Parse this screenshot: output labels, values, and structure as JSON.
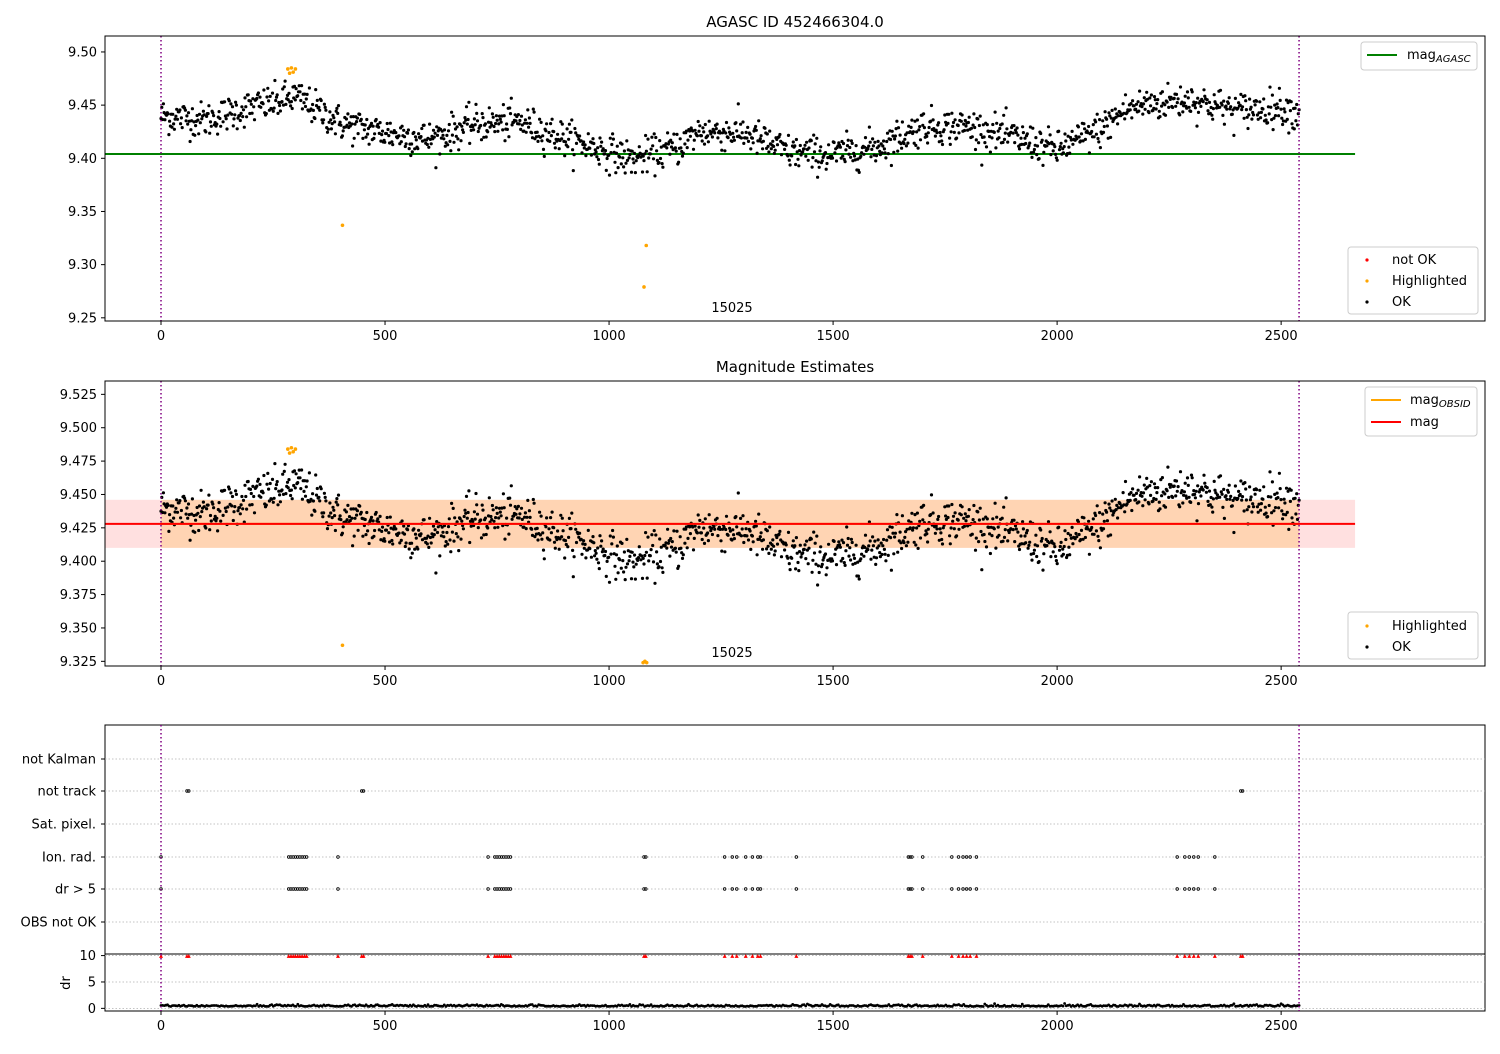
{
  "chart_data": [
    {
      "type": "scatter",
      "title": "AGASC ID 452466304.0",
      "xlim": [
        -125,
        2955
      ],
      "ylim": [
        9.247,
        9.515
      ],
      "xticks": [
        0,
        500,
        1000,
        1500,
        2000,
        2500
      ],
      "yticks": [
        9.25,
        9.3,
        9.35,
        9.4,
        9.45,
        9.5
      ],
      "yticklabels": [
        "9.25",
        "9.30",
        "9.35",
        "9.40",
        "9.45",
        "9.50"
      ],
      "obsid_label": "15025",
      "obsid_boundaries": [
        0,
        2540
      ],
      "mag_agasc": {
        "label": "mag",
        "subscript": "AGASC",
        "value": 9.404,
        "x_range": [
          -125,
          2665
        ],
        "color": "#008000"
      },
      "legend_points": [
        {
          "label": "not OK",
          "color": "#ff0000"
        },
        {
          "label": "Highlighted",
          "color": "#ffa500"
        },
        {
          "label": "OK",
          "color": "#000000"
        }
      ],
      "trend": {
        "x": [
          0,
          100,
          200,
          260,
          300,
          400,
          500,
          600,
          700,
          800,
          900,
          1000,
          1050,
          1080,
          1150,
          1200,
          1300,
          1400,
          1500,
          1600,
          1700,
          1800,
          1900,
          2000,
          2100,
          2150,
          2200,
          2300,
          2400,
          2500,
          2540
        ],
        "y": [
          9.44,
          9.436,
          9.448,
          9.453,
          9.458,
          9.433,
          9.424,
          9.418,
          9.432,
          9.434,
          9.419,
          9.406,
          9.399,
          9.402,
          9.41,
          9.425,
          9.424,
          9.406,
          9.403,
          9.411,
          9.43,
          9.43,
          9.42,
          9.408,
          9.428,
          9.445,
          9.451,
          9.455,
          9.445,
          9.448,
          9.442
        ],
        "noise": 0.011,
        "point_count": 1450
      },
      "highlighted": {
        "x": [
          283,
          287,
          291,
          295,
          300,
          405,
          1078,
          1083
        ],
        "y": [
          9.484,
          9.48,
          9.485,
          9.481,
          9.484,
          9.337,
          9.279,
          9.318
        ]
      }
    },
    {
      "type": "scatter",
      "title": "Magnitude Estimates",
      "xlim": [
        -125,
        2955
      ],
      "ylim": [
        9.3215,
        9.535
      ],
      "xticks": [
        0,
        500,
        1000,
        1500,
        2000,
        2500
      ],
      "yticks": [
        9.325,
        9.35,
        9.375,
        9.4,
        9.425,
        9.45,
        9.475,
        9.5,
        9.525
      ],
      "yticklabels": [
        "9.325",
        "9.350",
        "9.375",
        "9.400",
        "9.425",
        "9.450",
        "9.475",
        "9.500",
        "9.525"
      ],
      "obsid_label": "15025",
      "obsid_boundaries": [
        0,
        2540
      ],
      "mag": {
        "label": "mag",
        "value": 9.428,
        "x_range": [
          -125,
          2665
        ],
        "band": [
          9.41,
          9.446
        ],
        "color": "#ff0000"
      },
      "mag_obsid": {
        "label": "mag",
        "subscript": "OBSID",
        "value": 9.428,
        "band": [
          9.41,
          9.446
        ],
        "x_range": [
          0,
          2540
        ],
        "color": "#ffa500"
      },
      "legend_lines": [
        {
          "label": "mag",
          "subscript": "OBSID",
          "color": "#ffa500"
        },
        {
          "label": "mag",
          "subscript": "",
          "color": "#ff0000"
        }
      ],
      "legend_points": [
        {
          "label": "Highlighted",
          "color": "#ffa500"
        },
        {
          "label": "OK",
          "color": "#000000"
        }
      ],
      "highlighted": {
        "x": [
          283,
          287,
          291,
          295,
          300,
          405,
          1076,
          1080,
          1084
        ],
        "y": [
          9.484,
          9.481,
          9.485,
          9.482,
          9.484,
          9.337,
          9.324,
          9.325,
          9.324
        ]
      }
    },
    {
      "type": "scatter",
      "title": "",
      "xlim": [
        -125,
        2955
      ],
      "flag_rows": [
        "not Kalman",
        "not track",
        "Sat. pixel.",
        "Ion. rad.",
        "dr > 5",
        "OBS not OK"
      ],
      "obsid_boundaries": [
        0,
        2540
      ],
      "flags": {
        "not track": [
          58,
          62,
          448,
          452,
          2410,
          2414
        ],
        "Ion. rad.": [
          0,
          285,
          290,
          295,
          300,
          305,
          310,
          315,
          320,
          325,
          395,
          730,
          745,
          750,
          755,
          760,
          765,
          770,
          775,
          780,
          1078,
          1082,
          1258,
          1275,
          1285,
          1305,
          1320,
          1332,
          1338,
          1418,
          1668,
          1672,
          1676,
          1700,
          1765,
          1780,
          1790,
          1798,
          1806,
          1820,
          2268,
          2285,
          2295,
          2305,
          2315,
          2352
        ],
        "dr > 5": [
          0,
          285,
          290,
          295,
          300,
          305,
          310,
          315,
          320,
          325,
          395,
          730,
          745,
          750,
          755,
          760,
          765,
          770,
          775,
          780,
          1078,
          1082,
          1258,
          1275,
          1285,
          1305,
          1320,
          1332,
          1338,
          1418,
          1668,
          1672,
          1676,
          1700,
          1765,
          1780,
          1790,
          1798,
          1806,
          1820,
          2268,
          2285,
          2295,
          2305,
          2315,
          2352
        ]
      },
      "dr_panel": {
        "ylabel": "dr",
        "ylim": [
          -0.5,
          10.3
        ],
        "yticks": [
          0,
          5,
          10
        ],
        "yticklabels": [
          "0",
          "5",
          "10"
        ],
        "xticks": [
          0,
          500,
          1000,
          1500,
          2000,
          2500
        ],
        "baseline": 0.35,
        "clipped_marker_value": 9.9,
        "clipped_x": [
          0,
          58,
          62,
          285,
          290,
          295,
          300,
          305,
          310,
          315,
          320,
          325,
          395,
          448,
          452,
          730,
          745,
          750,
          755,
          760,
          765,
          770,
          775,
          780,
          1078,
          1082,
          1258,
          1275,
          1285,
          1305,
          1320,
          1332,
          1338,
          1418,
          1668,
          1672,
          1676,
          1700,
          1765,
          1780,
          1790,
          1798,
          1806,
          1820,
          2268,
          2285,
          2295,
          2305,
          2315,
          2352,
          2410,
          2414
        ]
      }
    }
  ]
}
